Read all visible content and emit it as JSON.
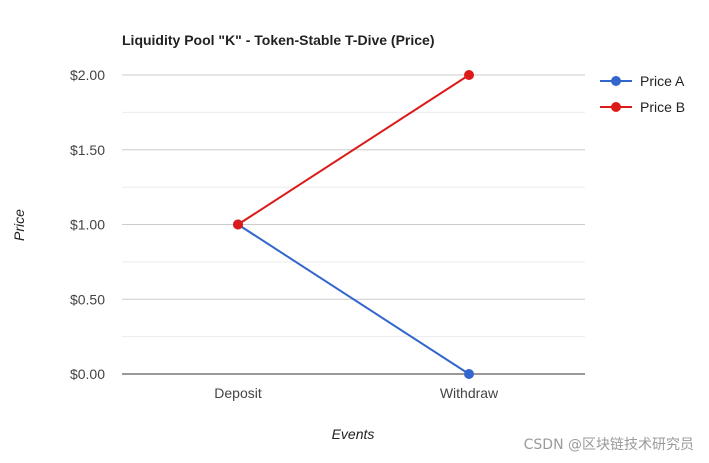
{
  "chart_data": {
    "type": "line",
    "title": "Liquidity Pool \"K\" - Token-Stable T-Dive (Price)",
    "xlabel": "Events",
    "ylabel": "Price",
    "categories": [
      "Deposit",
      "Withdraw"
    ],
    "series": [
      {
        "name": "Price A",
        "values": [
          1.0,
          0.0
        ],
        "color": "#3366cc"
      },
      {
        "name": "Price B",
        "values": [
          1.0,
          2.0
        ],
        "color": "#dc1a1a"
      }
    ],
    "ylim": [
      0,
      2
    ],
    "yticks": [
      0,
      0.5,
      1.0,
      1.5,
      2.0
    ],
    "ytick_labels": [
      "$0.00",
      "$0.50",
      "$1.00",
      "$1.50",
      "$2.00"
    ],
    "grid": true,
    "legend_position": "right"
  },
  "watermark": "CSDN @区块链技术研究员"
}
